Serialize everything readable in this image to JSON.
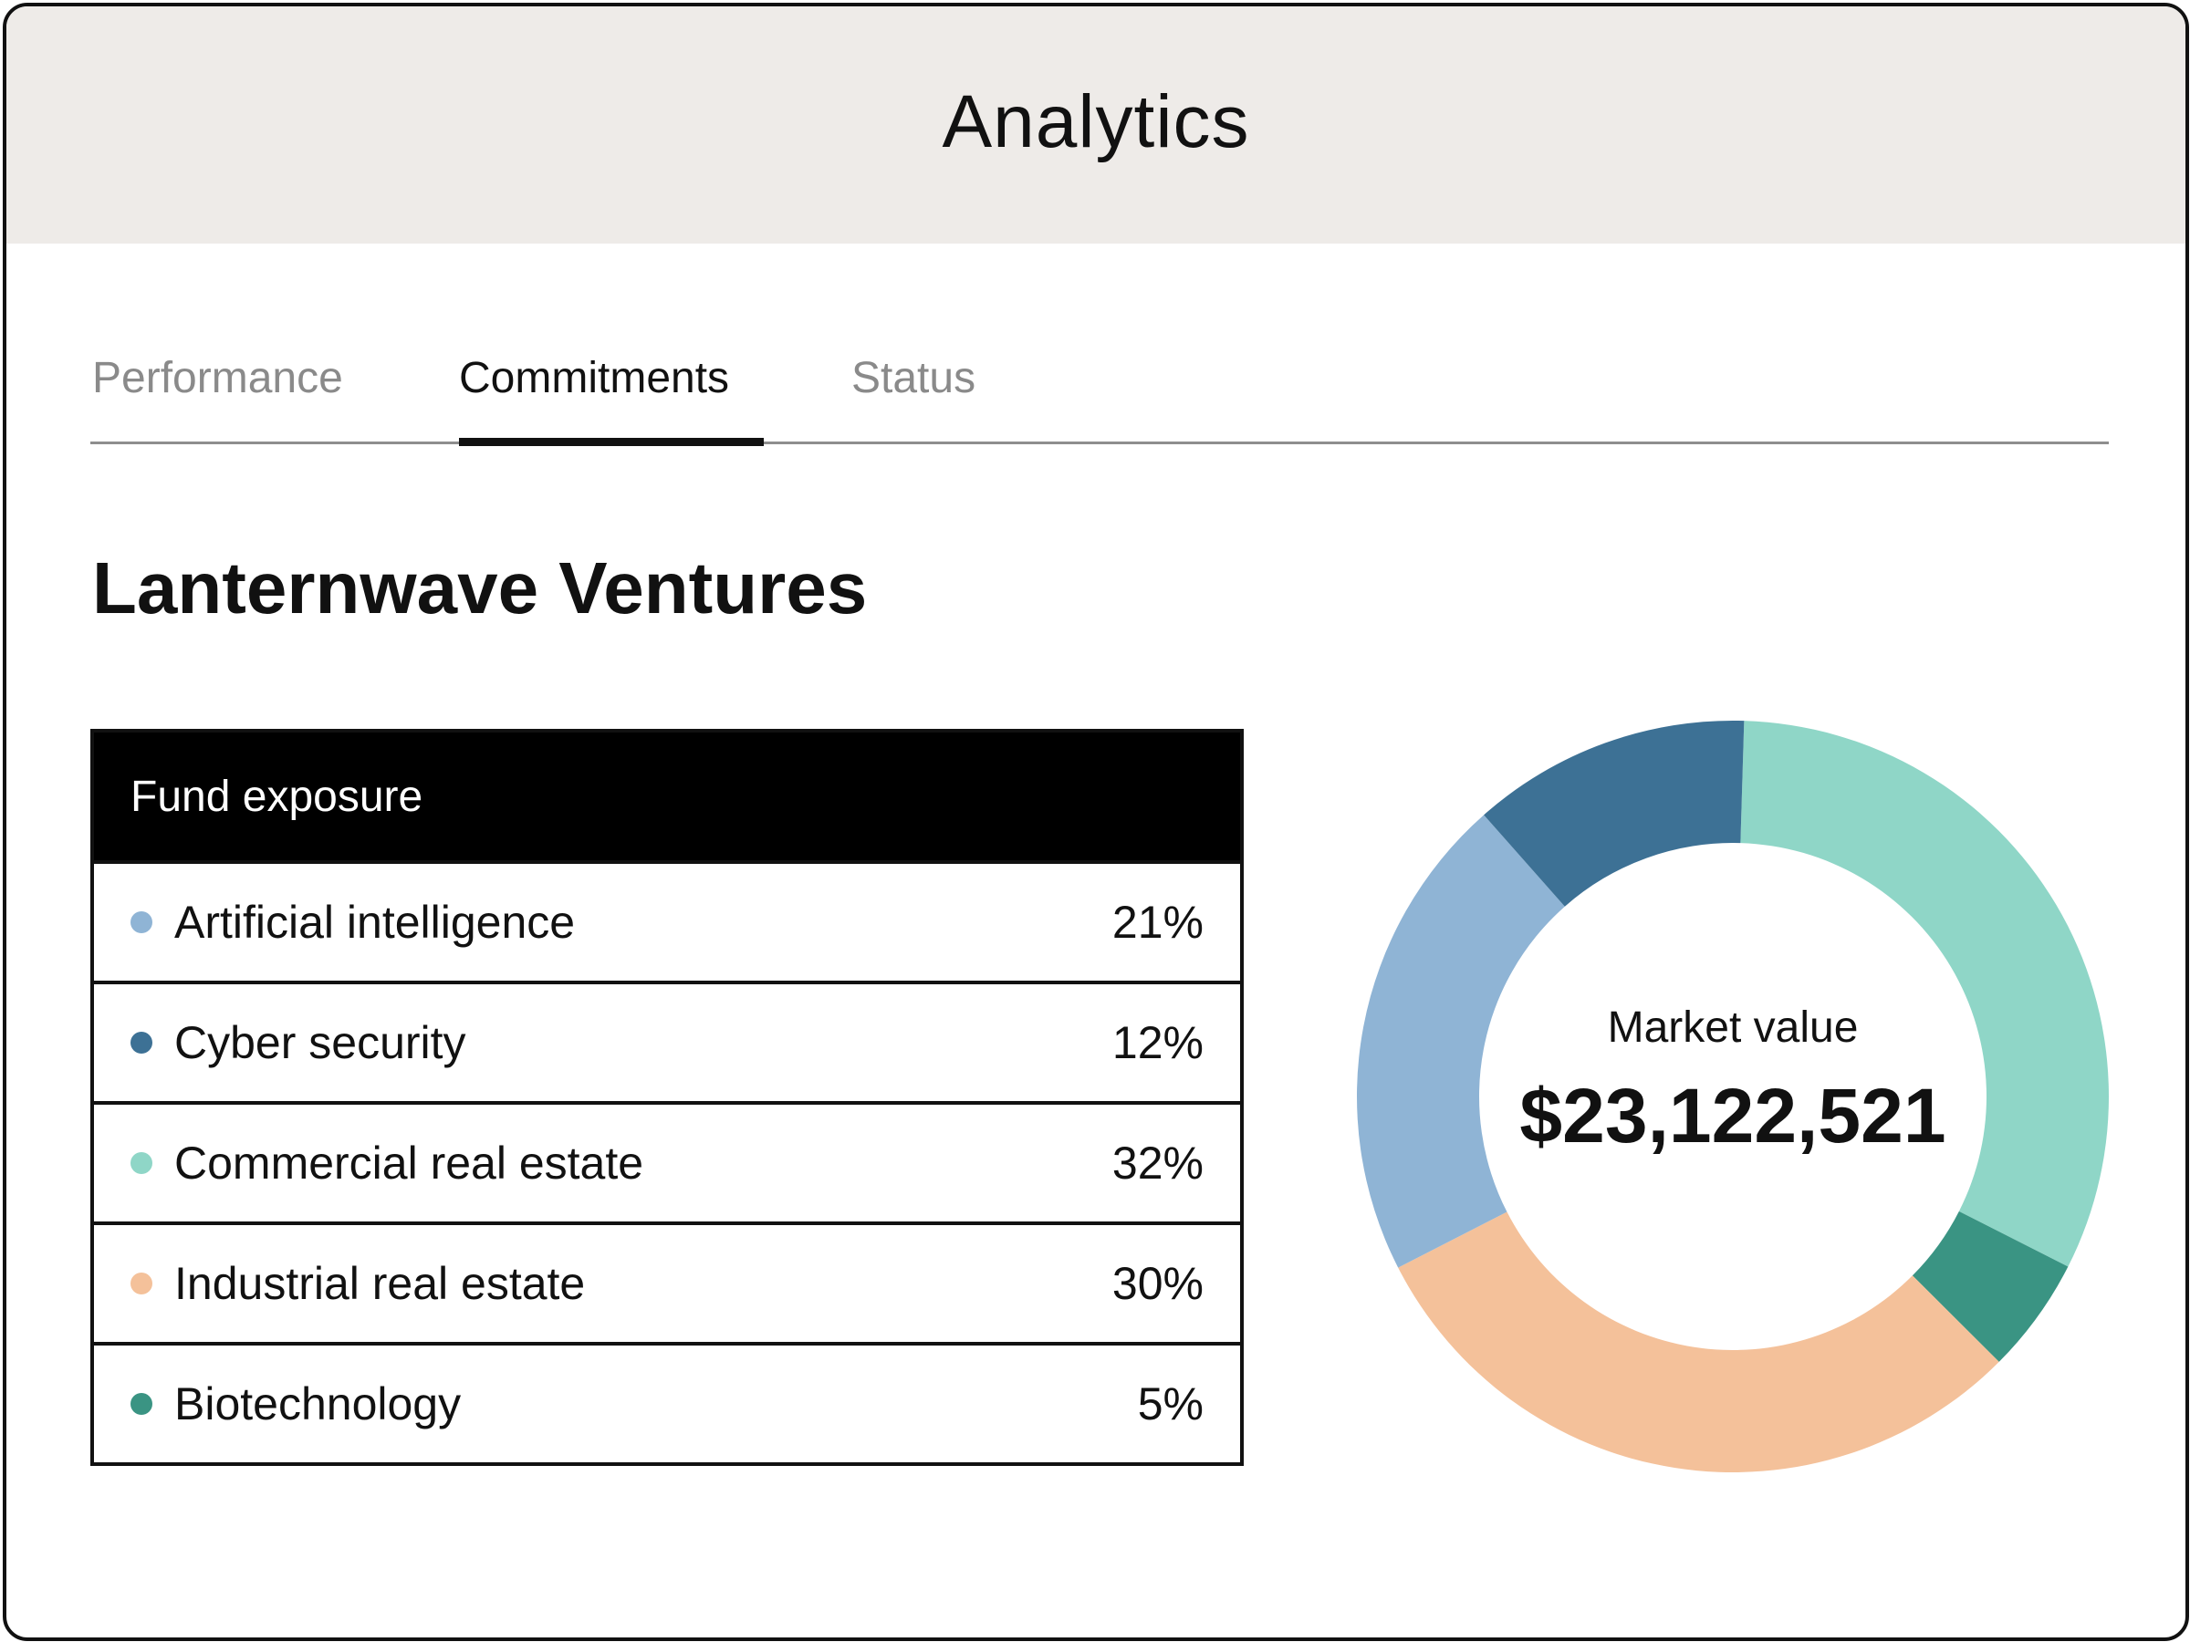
{
  "header": {
    "title": "Analytics"
  },
  "tabs": [
    {
      "label": "Performance",
      "active": false
    },
    {
      "label": "Commitments",
      "active": true
    },
    {
      "label": "Status",
      "active": false
    }
  ],
  "fund": {
    "name": "Lanternwave Ventures"
  },
  "exposure": {
    "title": "Fund exposure",
    "rows": [
      {
        "label": "Artificial intelligence",
        "value": "21%",
        "color": "#8fb4d5"
      },
      {
        "label": "Cyber security",
        "value": "12%",
        "color": "#3d7195"
      },
      {
        "label": "Commercial real estate",
        "value": "32%",
        "color": "#8fd6c7"
      },
      {
        "label": "Industrial real estate",
        "value": "30%",
        "color": "#f4c19a"
      },
      {
        "label": "Biotechnology",
        "value": "5%",
        "color": "#3a9483"
      }
    ]
  },
  "donut": {
    "center_label": "Market value",
    "center_value": "$23,122,521"
  },
  "chart_data": {
    "type": "pie",
    "categories": [
      "Artificial intelligence",
      "Cyber security",
      "Commercial real estate",
      "Industrial real estate",
      "Biotechnology"
    ],
    "values": [
      21,
      12,
      32,
      30,
      5
    ],
    "colors": [
      "#8fb4d5",
      "#3d7195",
      "#8fd6c7",
      "#f4c19a",
      "#3a9483"
    ],
    "order_clockwise_from_top": [
      "Commercial real estate",
      "Biotechnology",
      "Industrial real estate",
      "Artificial intelligence",
      "Cyber security"
    ]
  }
}
